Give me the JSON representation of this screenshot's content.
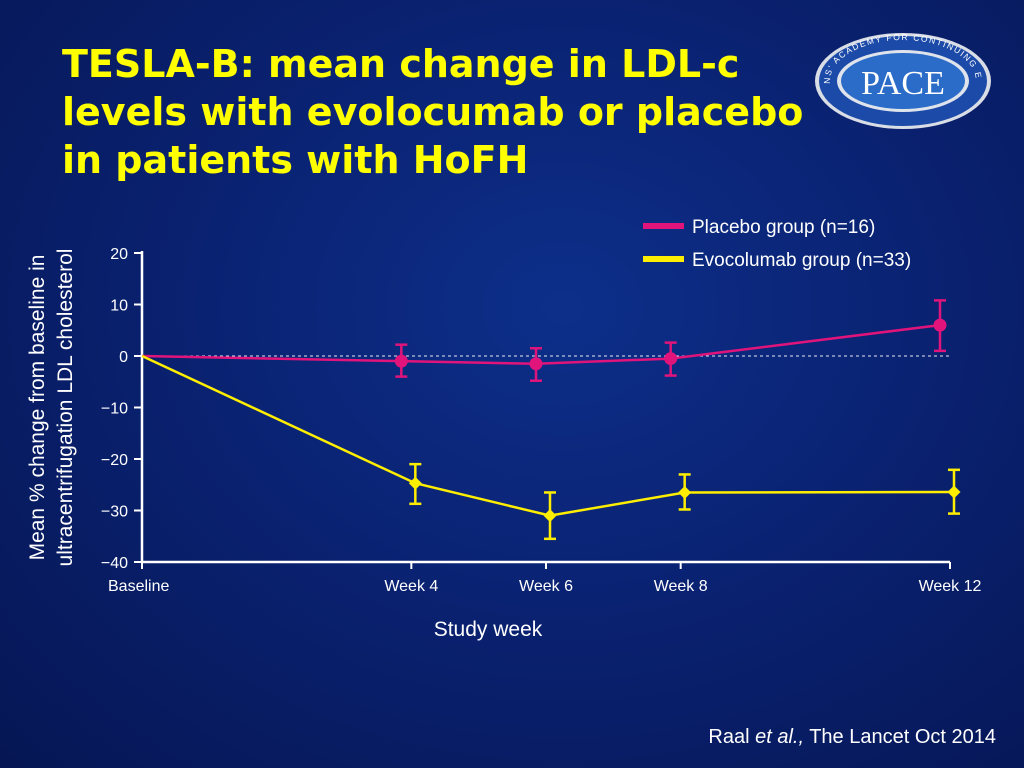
{
  "slide": {
    "title": "TESLA-B: mean change in LDL-c levels with evolocumab or placebo in patients with HoFH",
    "citation_author": "Raal ",
    "citation_etal": "et al.,",
    "citation_rest": " The Lancet Oct 2014"
  },
  "logo": {
    "text": "PACE",
    "ring_text": "PHYSICIANS' ACADEMY FOR CONTINUING EDUCATION",
    "color_ring": "#1c4aa8",
    "color_inner": "#2a6cc7"
  },
  "chart_data": {
    "type": "line",
    "categories": [
      "Baseline",
      "Week 4",
      "Week 6",
      "Week 8",
      "Week 12"
    ],
    "x_weeks": [
      0,
      4,
      6,
      8,
      12
    ],
    "xlabel": "Study week",
    "ylabel_line1": "Mean % change from baseline in",
    "ylabel_line2": "ultracentrifugation LDL cholesterol",
    "ylim": [
      -40,
      20
    ],
    "yticks": [
      20,
      10,
      0,
      -10,
      -20,
      -30,
      -40
    ],
    "ytick_labels": [
      "20",
      "10",
      "0",
      "−10",
      "−20",
      "−30",
      "−40"
    ],
    "reference_line": 0,
    "legend_placement": "top-right",
    "series": [
      {
        "name": "Placebo group (n=16)",
        "color": "#e0147a",
        "marker": "circle",
        "values": [
          0,
          -1,
          -1.5,
          -0.5,
          6
        ],
        "err_low": [
          null,
          -4,
          -4.8,
          -3.8,
          1
        ],
        "err_high": [
          null,
          2.2,
          1.5,
          2.6,
          10.8
        ]
      },
      {
        "name": "Evocolumab group (n=33)",
        "color": "#ffee00",
        "marker": "diamond",
        "values": [
          0,
          -24.7,
          -31,
          -26.5,
          -26.4
        ],
        "err_low": [
          null,
          -28.7,
          -35.5,
          -29.8,
          -30.6
        ],
        "err_high": [
          null,
          -21,
          -26.5,
          -23,
          -22.1
        ]
      }
    ]
  }
}
